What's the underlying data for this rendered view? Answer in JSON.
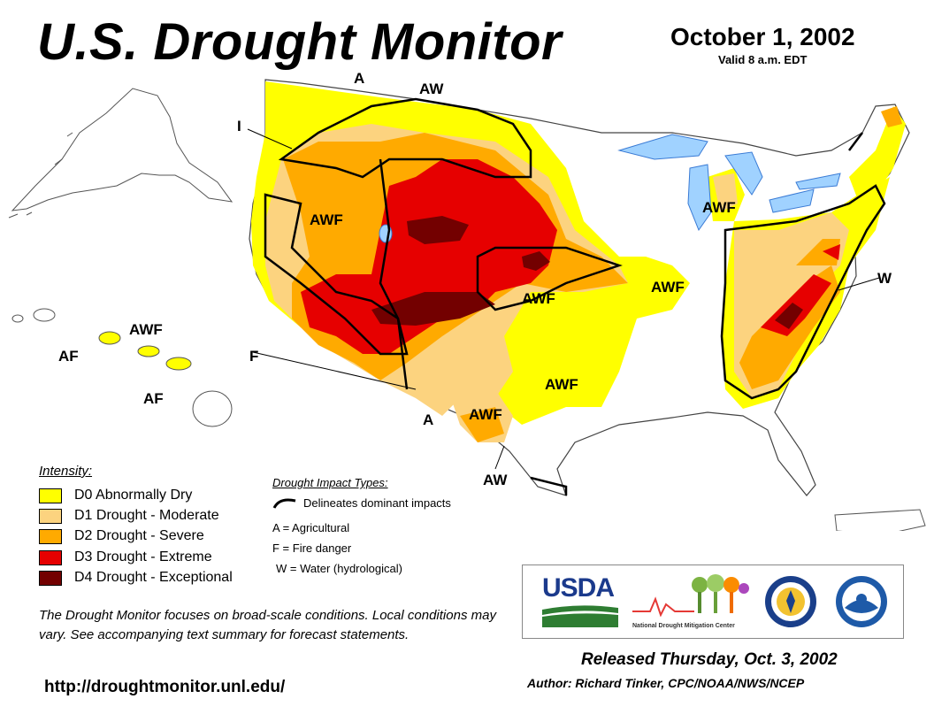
{
  "header": {
    "title": "U.S. Drought Monitor",
    "date": "October 1, 2002",
    "valid": "Valid 8 a.m. EDT"
  },
  "map": {
    "impact_labels": [
      "A",
      "AW",
      "I",
      "AWF",
      "AWF",
      "AWF",
      "AWF",
      "AWF",
      "AWF",
      "A",
      "AWF",
      "W",
      "AW",
      "AF",
      "AF",
      "F"
    ],
    "colors": {
      "D0": "#ffff00",
      "D1": "#fcd37f",
      "D2": "#ffaa00",
      "D3": "#e60000",
      "D4": "#730000",
      "water": "#a0d2ff",
      "boundary": "#000000"
    }
  },
  "legend": {
    "heading": "Intensity:",
    "items": [
      {
        "label": "D0 Abnormally Dry",
        "color": "#ffff00"
      },
      {
        "label": "D1 Drought - Moderate",
        "color": "#fcd37f"
      },
      {
        "label": "D2 Drought - Severe",
        "color": "#ffaa00"
      },
      {
        "label": "D3 Drought - Extreme",
        "color": "#e60000"
      },
      {
        "label": "D4 Drought - Exceptional",
        "color": "#730000"
      }
    ]
  },
  "impact": {
    "heading": "Drought Impact Types:",
    "line_label": "Delineates dominant impacts",
    "types": [
      "A = Agricultural",
      "F = Fire danger",
      "W = Water (hydrological)"
    ]
  },
  "note": "The Drought Monitor focuses on broad-scale conditions. Local conditions may vary. See accompanying text summary for forecast statements.",
  "url": "http://droughtmonitor.unl.edu/",
  "logos": {
    "usda": "USDA",
    "ndmc": "National Drought Mitigation Center"
  },
  "footer": {
    "released": "Released Thursday, Oct. 3, 2002",
    "author": "Author: Richard Tinker, CPC/NOAA/NWS/NCEP"
  }
}
